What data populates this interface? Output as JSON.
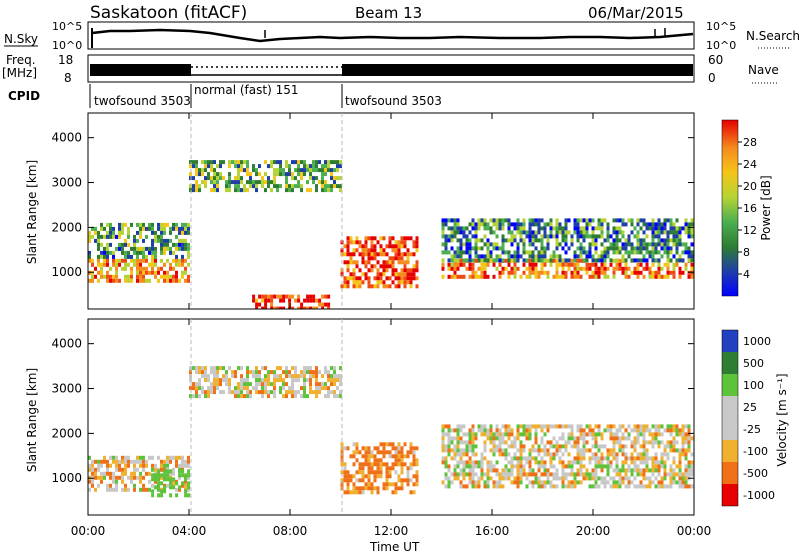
{
  "header": {
    "title": "Saskatoon (fitACF)",
    "beam": "Beam 13",
    "date": "06/Mar/2015"
  },
  "noise_panel": {
    "left_label": "N.Sky",
    "left_ticks": [
      "10^5",
      "10^0"
    ],
    "right_label": "N.Search",
    "right_ticks": [
      "10^5",
      "10^0"
    ]
  },
  "freq_panel": {
    "left_label_top": "Freq.",
    "left_label_unit": "[MHz]",
    "left_ticks": [
      "18",
      "8"
    ],
    "right_label": "Nave",
    "right_ticks": [
      "60",
      "0"
    ]
  },
  "cpid": {
    "label": "CPID",
    "modes": [
      {
        "name": "twofsound 3503",
        "start_hour": 0
      },
      {
        "name": "normal (fast) 151",
        "start_hour": 4
      },
      {
        "name": "twofsound 3503",
        "start_hour": 10
      }
    ]
  },
  "colors": {
    "power": [
      "#0000ff",
      "#1e3ea8",
      "#2e7d32",
      "#4caf50",
      "#b5d334",
      "#f5c518",
      "#f58c1e",
      "#f04a14",
      "#e60000"
    ],
    "velocity": [
      "#2040c0",
      "#2e7d32",
      "#5cc33a",
      "#c8c8c8",
      "#c8c8c8",
      "#f0b030",
      "#f07018",
      "#e60000"
    ]
  },
  "chart_data": [
    {
      "type": "heatmap",
      "quantity": "Power",
      "ylabel": "Slant Range [km]",
      "yticks": [
        1000,
        2000,
        3000,
        4000
      ],
      "ylim": [
        180,
        4550
      ],
      "xlim": [
        0,
        24
      ],
      "colorbar_label": "Power [dB]",
      "colorbar_ticks": [
        "4",
        "8",
        "12",
        "16",
        "20",
        "24",
        "28"
      ],
      "bands": [
        {
          "x": [
            0,
            4
          ],
          "y": [
            800,
            1300
          ],
          "level": 0.7
        },
        {
          "x": [
            0,
            4
          ],
          "y": [
            1300,
            2100
          ],
          "level": 0.35
        },
        {
          "x": [
            4,
            10
          ],
          "y": [
            2800,
            3500
          ],
          "level": 0.4
        },
        {
          "x": [
            6.5,
            9.5
          ],
          "y": [
            200,
            500
          ],
          "level": 0.9
        },
        {
          "x": [
            10,
            13
          ],
          "y": [
            700,
            1800
          ],
          "level": 0.85
        },
        {
          "x": [
            14,
            24
          ],
          "y": [
            900,
            1300
          ],
          "level": 0.75
        },
        {
          "x": [
            14,
            24
          ],
          "y": [
            1300,
            2200
          ],
          "level": 0.3
        }
      ]
    },
    {
      "type": "heatmap",
      "quantity": "Velocity",
      "ylabel": "Slant Range [km]",
      "yticks": [
        1000,
        2000,
        3000,
        4000
      ],
      "ylim": [
        180,
        4550
      ],
      "xlim": [
        0,
        24
      ],
      "xlabel": "Time UT",
      "xticks": [
        "00:00",
        "04:00",
        "08:00",
        "12:00",
        "16:00",
        "20:00",
        "00:00"
      ],
      "colorbar_label": "Velocity [m s⁻¹]",
      "colorbar_ticks": [
        "1000",
        "500",
        "100",
        "25",
        "-25",
        "-100",
        "-500",
        "-1000"
      ],
      "bands": [
        {
          "x": [
            0,
            4
          ],
          "y": [
            700,
            1500
          ],
          "value": -25
        },
        {
          "x": [
            2.5,
            4
          ],
          "y": [
            600,
            1200
          ],
          "value": 300
        },
        {
          "x": [
            4,
            10
          ],
          "y": [
            2800,
            3500
          ],
          "value": 0
        },
        {
          "x": [
            10,
            13
          ],
          "y": [
            700,
            1800
          ],
          "value": -150
        },
        {
          "x": [
            14,
            24
          ],
          "y": [
            800,
            2200
          ],
          "value": 0
        }
      ]
    }
  ]
}
